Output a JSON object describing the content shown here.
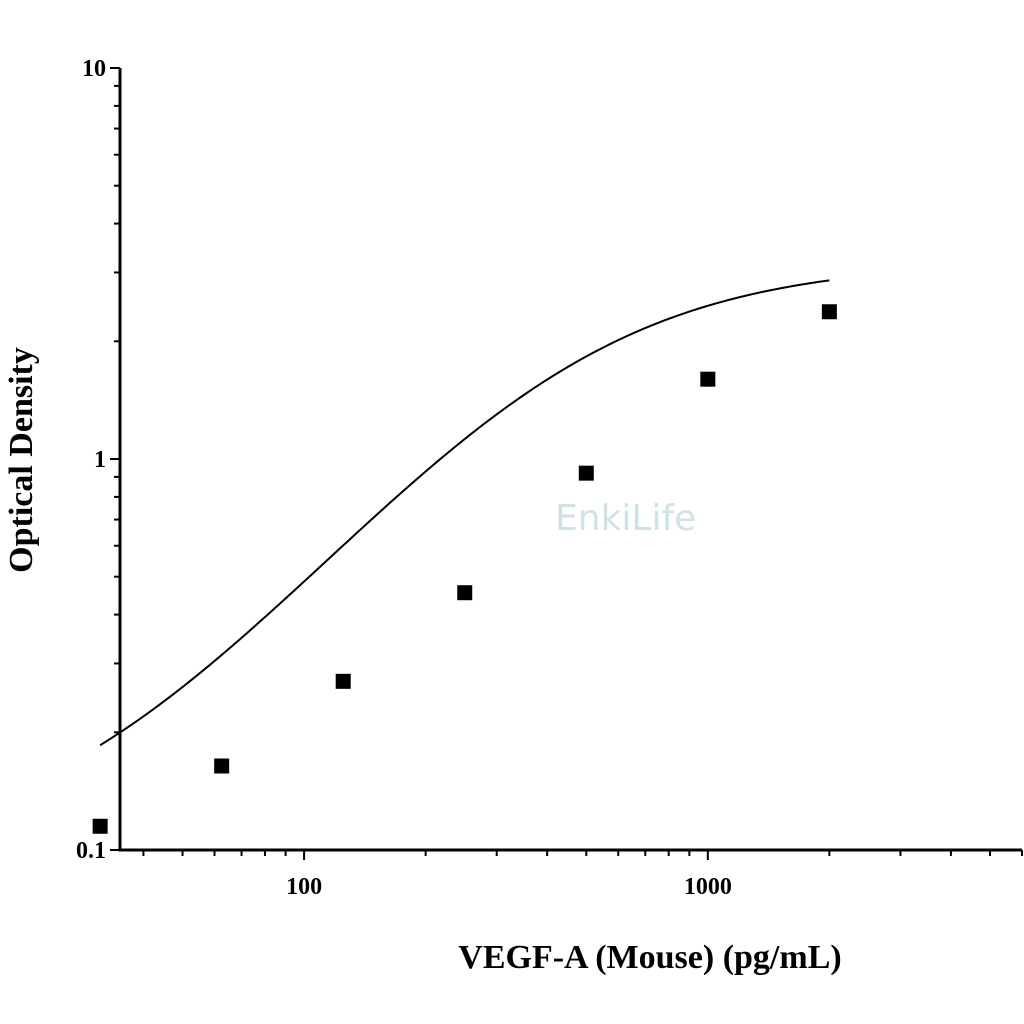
{
  "watermark": {
    "text": "EnkiLife"
  },
  "chart_data": {
    "type": "scatter",
    "title": "",
    "xlabel": "VEGF-A (Mouse) (pg/mL)",
    "ylabel": "Optical Density",
    "xscale": "log",
    "yscale": "log",
    "xlim": [
      35,
      6000
    ],
    "ylim": [
      0.1,
      10
    ],
    "xticks": [
      100,
      1000
    ],
    "xtick_labels": [
      "100",
      "1000"
    ],
    "yticks": [
      0.1,
      1,
      10
    ],
    "ytick_labels": [
      "0.1",
      "1",
      "10"
    ],
    "grid": false,
    "legend": false,
    "series": [
      {
        "marker": "square",
        "color": "#000000",
        "x": [
          31.25,
          62.5,
          125,
          250,
          500,
          1000,
          2000
        ],
        "y": [
          0.115,
          0.164,
          0.27,
          0.455,
          0.92,
          1.6,
          2.38
        ]
      }
    ],
    "fit_curve": {
      "model": "4PL",
      "color": "#000000",
      "params": {
        "A": 0.095,
        "B": 1.35,
        "C": 420,
        "D": 3.2
      },
      "x_range": [
        31.25,
        2000
      ]
    }
  }
}
